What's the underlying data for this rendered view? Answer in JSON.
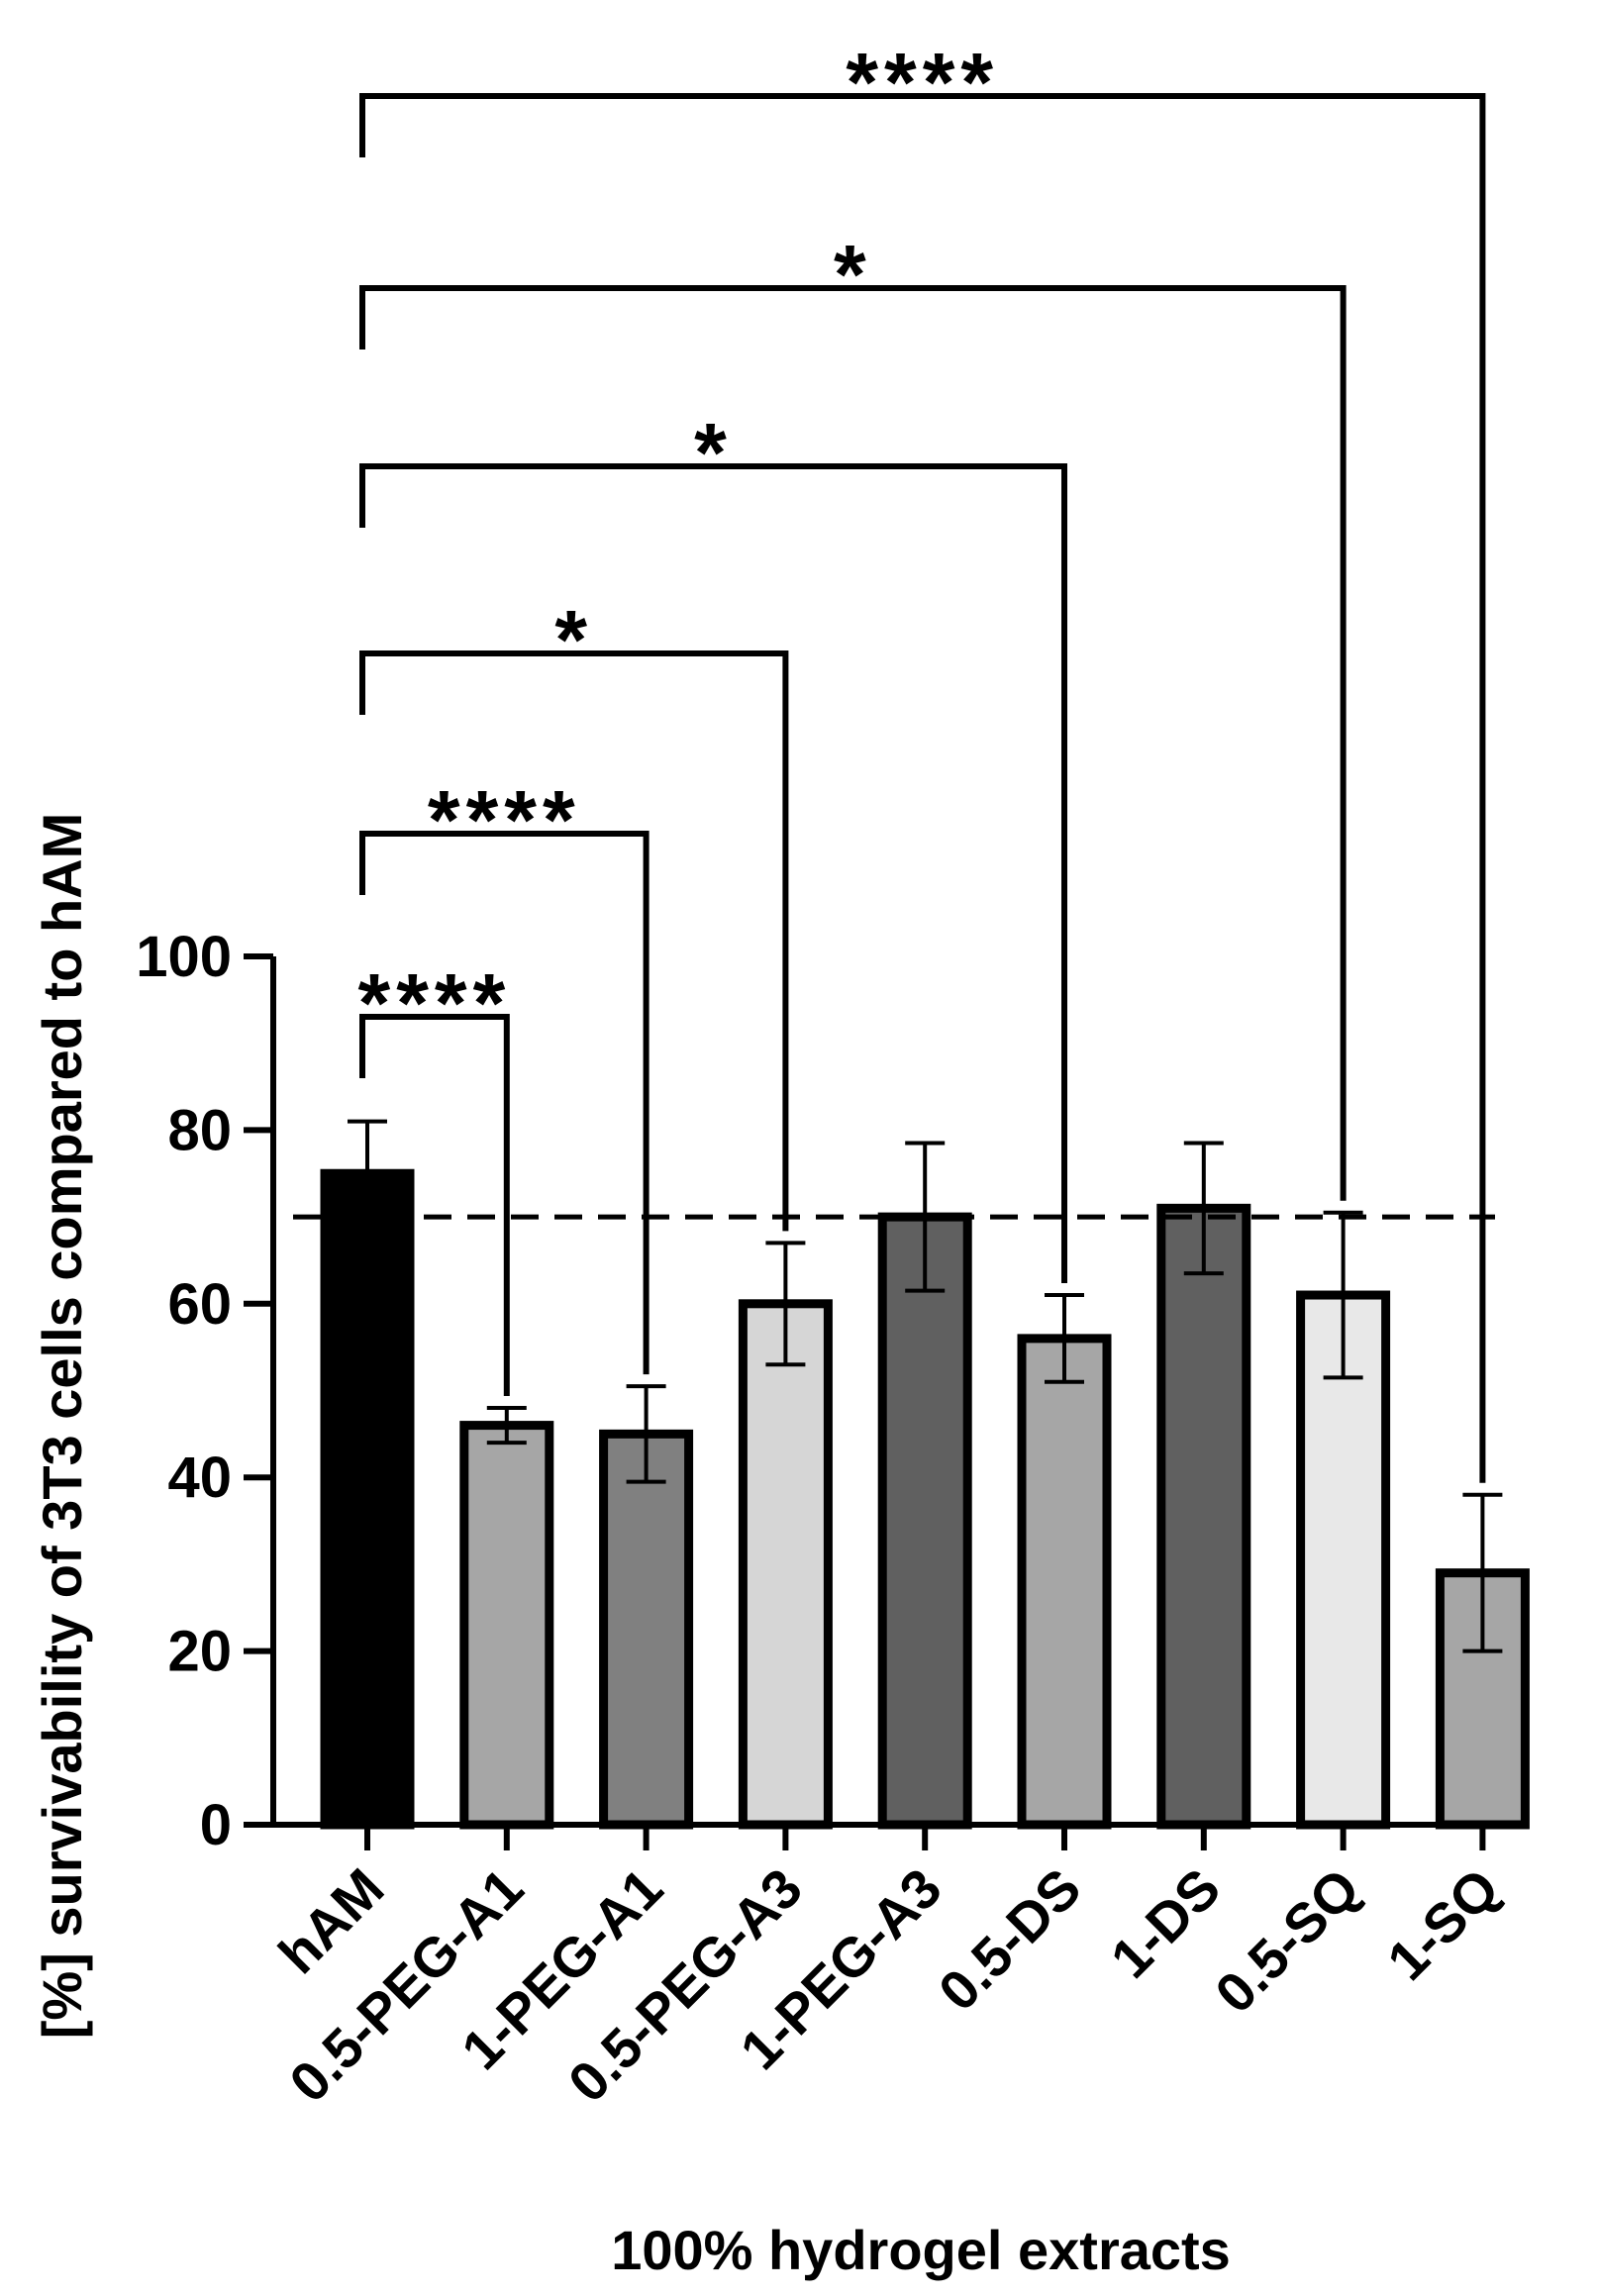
{
  "chart_data": {
    "type": "bar",
    "title": "",
    "xlabel": "100% hydrogel extracts",
    "ylabel": "[%] survivability of 3T3 cells compared to hAM",
    "ylim": [
      0,
      100
    ],
    "yticks": [
      0,
      20,
      40,
      60,
      80,
      100
    ],
    "categories": [
      "hAM",
      "0.5-PEG-A1",
      "1-PEG-A1",
      "0.5-PEG-A3",
      "1-PEG-A3",
      "0.5-DS",
      "1-DS",
      "0.5-SQ",
      "1-SQ"
    ],
    "values": [
      75,
      46,
      45,
      60,
      70,
      56,
      71,
      61,
      29
    ],
    "errors": [
      6,
      2,
      5.5,
      7,
      8.5,
      5,
      7.5,
      9.5,
      9
    ],
    "fill_colors": [
      "#000000",
      "#a6a6a6",
      "#808080",
      "#d6d6d6",
      "#606060",
      "#a6a6a6",
      "#606060",
      "#e8e8e8",
      "#a6a6a6"
    ],
    "reference_line": 70,
    "significance": [
      {
        "to": "0.5-PEG-A1",
        "label": "****"
      },
      {
        "to": "1-PEG-A1",
        "label": "****"
      },
      {
        "to": "0.5-PEG-A3",
        "label": "*"
      },
      {
        "to": "0.5-DS",
        "label": "*"
      },
      {
        "to": "0.5-SQ",
        "label": "*"
      },
      {
        "to": "1-SQ",
        "label": "****"
      }
    ]
  }
}
